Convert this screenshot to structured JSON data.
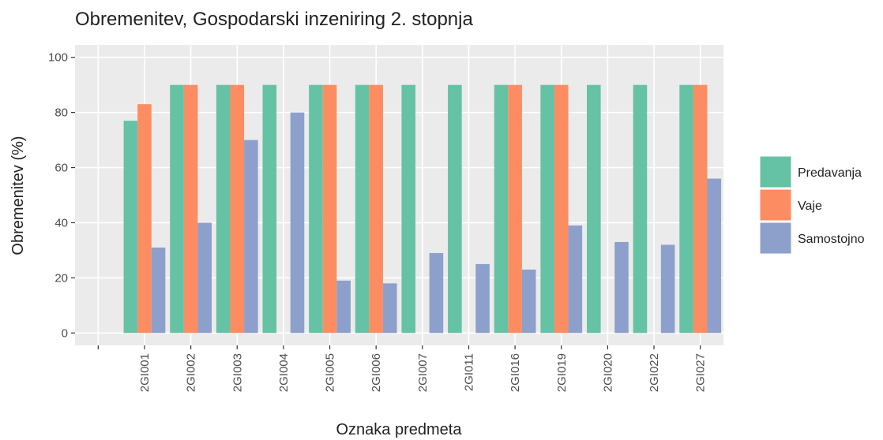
{
  "chart_data": {
    "type": "bar",
    "title": "Obremenitev, Gospodarski inzeniring 2. stopnja",
    "x_label": "Oznaka predmeta",
    "y_label": "Obremenitev (%)",
    "categories": [
      null,
      "2GI001",
      "2GI002",
      "2GI003",
      "2GI004",
      "2GI005",
      "2GI006",
      "2GI007",
      "2GI011",
      "2GI016",
      "2GI019",
      "2GI020",
      "2GI022",
      "2GI027"
    ],
    "series": [
      {
        "name": "Predavanja",
        "color": "#66C2A5",
        "values": [
          null,
          77,
          90,
          90,
          90,
          90,
          90,
          90,
          90,
          90,
          90,
          90,
          90,
          90
        ]
      },
      {
        "name": "Vaje",
        "color": "#FC8D62",
        "values": [
          null,
          83,
          90,
          90,
          null,
          90,
          90,
          null,
          null,
          90,
          90,
          null,
          null,
          90
        ]
      },
      {
        "name": "Samostojno",
        "color": "#8DA0CB",
        "values": [
          null,
          31,
          40,
          70,
          80,
          19,
          18,
          29,
          25,
          23,
          39,
          33,
          32,
          56
        ]
      }
    ],
    "ylim": [
      -4.5,
      104.5
    ],
    "yticks": [
      0,
      20,
      40,
      60,
      80,
      100
    ],
    "grid": true,
    "legend": "right"
  }
}
